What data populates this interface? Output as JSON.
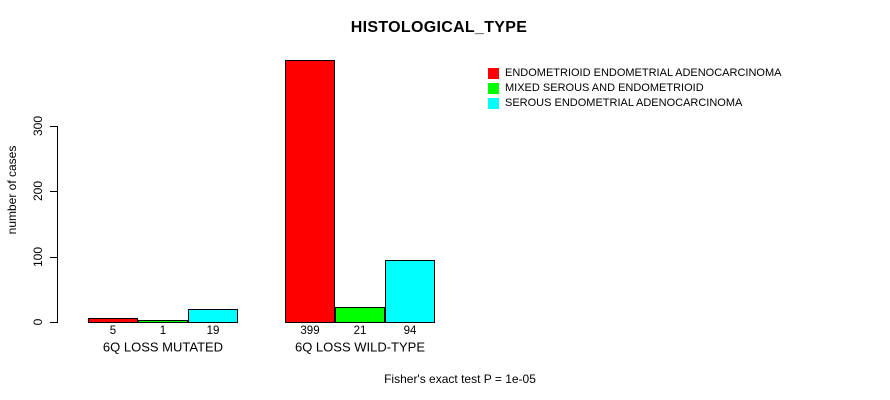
{
  "chart_data": {
    "type": "bar",
    "title": "HISTOLOGICAL_TYPE",
    "ylabel": "number of cases",
    "xlabel": "",
    "categories": [
      "6Q LOSS MUTATED",
      "6Q LOSS WILD-TYPE"
    ],
    "series": [
      {
        "name": "ENDOMETRIOID ENDOMETRIAL ADENOCARCINOMA",
        "color": "#ff0000",
        "values": [
          5,
          399
        ]
      },
      {
        "name": "MIXED SEROUS AND ENDOMETRIOID",
        "color": "#00ff00",
        "values": [
          1,
          21
        ]
      },
      {
        "name": "SEROUS ENDOMETRIAL ADENOCARCINOMA",
        "color": "#00ffff",
        "values": [
          19,
          94
        ]
      }
    ],
    "yticks": [
      0,
      100,
      200,
      300
    ],
    "ylim": [
      0,
      399
    ],
    "grid": false,
    "legend_position": "top-right",
    "bar_border_color": "#000000",
    "annotation": "Fisher's exact test P = 1e-05"
  },
  "colors": {
    "background": "#ffffff",
    "text": "#000000"
  }
}
